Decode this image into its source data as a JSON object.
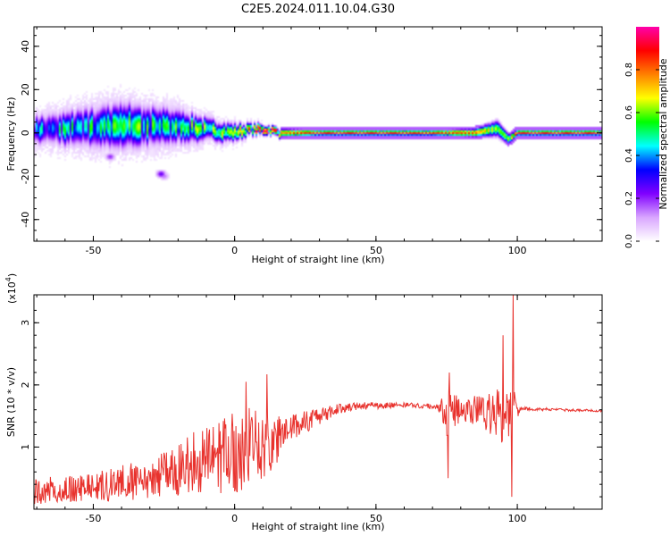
{
  "title": "C2E5.2024.011.10.04.G30",
  "chart_data": [
    {
      "type": "heatmap",
      "xlabel": "Height of straight line (km)",
      "ylabel": "Frequency (Hz)",
      "xlim": [
        -71,
        130
      ],
      "ylim": [
        -50,
        49
      ],
      "xticks": [
        -50,
        0,
        50,
        100
      ],
      "yticks": [
        -40,
        -20,
        0,
        20,
        40
      ],
      "xtick_labels": [
        "-50",
        "0",
        "50",
        "100"
      ],
      "ytick_labels": [
        "-40",
        "-20",
        "0",
        "20",
        "40"
      ],
      "colorbar": {
        "label": "Normalized spectral amplitude",
        "range": [
          0,
          1
        ],
        "ticks": [
          0.0,
          0.2,
          0.4,
          0.6,
          0.8
        ],
        "tick_labels": [
          "0.0",
          "0.2",
          "0.4",
          "0.6",
          "0.8"
        ],
        "colormap": [
          "#ffffff",
          "#d9a6ff",
          "#8000ff",
          "#0000ff",
          "#00ffff",
          "#00ff00",
          "#ffff00",
          "#ff8000",
          "#ff0000",
          "#ff00aa"
        ]
      },
      "ridge": [
        {
          "x": -70,
          "y": 1.5,
          "width": 5,
          "amp": 0.4
        },
        {
          "x": -60,
          "y": 2,
          "width": 6,
          "amp": 0.45
        },
        {
          "x": -50,
          "y": 2.5,
          "width": 7,
          "amp": 0.45
        },
        {
          "x": -40,
          "y": 3.5,
          "width": 8,
          "amp": 0.5
        },
        {
          "x": -30,
          "y": 3,
          "width": 7,
          "amp": 0.5
        },
        {
          "x": -20,
          "y": 3,
          "width": 6,
          "amp": 0.5
        },
        {
          "x": -10,
          "y": 1.5,
          "width": 4,
          "amp": 0.55
        },
        {
          "x": 0,
          "y": 0,
          "width": 3,
          "amp": 0.6
        },
        {
          "x": 5,
          "y": 1.5,
          "width": 2,
          "amp": 0.7
        },
        {
          "x": 12,
          "y": 1.5,
          "width": 1.5,
          "amp": 0.95
        },
        {
          "x": 16,
          "y": 0,
          "width": 1.5,
          "amp": 0.75
        },
        {
          "x": 30,
          "y": 0,
          "width": 1,
          "amp": 0.9
        },
        {
          "x": 50,
          "y": 0,
          "width": 1,
          "amp": 0.9
        },
        {
          "x": 70,
          "y": 0,
          "width": 1,
          "amp": 0.85
        },
        {
          "x": 85,
          "y": 0,
          "width": 1.5,
          "amp": 0.8
        },
        {
          "x": 93,
          "y": 2,
          "width": 3,
          "amp": 0.6
        },
        {
          "x": 97,
          "y": -3,
          "width": 2,
          "amp": 0.6
        },
        {
          "x": 100,
          "y": 0,
          "width": 1,
          "amp": 0.9
        },
        {
          "x": 130,
          "y": 0,
          "width": 1,
          "amp": 0.9
        }
      ],
      "spots": [
        {
          "x": -44,
          "y": -11,
          "amp": 0.2
        },
        {
          "x": -25,
          "y": -20,
          "amp": 0.15
        },
        {
          "x": -26,
          "y": -19,
          "amp": 0.25
        }
      ]
    },
    {
      "type": "line",
      "xlabel": "Height of straight line (km)",
      "ylabel": "SNR (10 * v/v)",
      "yscale_label": "(x10",
      "yscale_exponent": "4",
      "xlim": [
        -71,
        130
      ],
      "ylim": [
        0,
        3.45
      ],
      "xticks": [
        -50,
        0,
        50,
        100
      ],
      "yticks": [
        1,
        2,
        3
      ],
      "xtick_labels": [
        "-50",
        "0",
        "50",
        "100"
      ],
      "ytick_labels": [
        "1",
        "2",
        "3"
      ],
      "line_color": "#e8322d",
      "envelope": [
        {
          "x": -71,
          "mean": 0.3,
          "amp": 0.25
        },
        {
          "x": -50,
          "mean": 0.35,
          "amp": 0.25
        },
        {
          "x": -30,
          "mean": 0.5,
          "amp": 0.4
        },
        {
          "x": -15,
          "mean": 0.75,
          "amp": 0.55
        },
        {
          "x": 0,
          "mean": 0.9,
          "amp": 0.75
        },
        {
          "x": 5,
          "mean": 1.0,
          "amp": 0.7
        },
        {
          "x": 12,
          "mean": 1.05,
          "amp": 0.55
        },
        {
          "x": 20,
          "mean": 1.3,
          "amp": 0.25
        },
        {
          "x": 30,
          "mean": 1.5,
          "amp": 0.15
        },
        {
          "x": 40,
          "mean": 1.65,
          "amp": 0.08
        },
        {
          "x": 60,
          "mean": 1.68,
          "amp": 0.04
        },
        {
          "x": 72,
          "mean": 1.65,
          "amp": 0.05
        },
        {
          "x": 75,
          "mean": 1.55,
          "amp": 0.45
        },
        {
          "x": 80,
          "mean": 1.6,
          "amp": 0.25
        },
        {
          "x": 88,
          "mean": 1.55,
          "amp": 0.3
        },
        {
          "x": 94,
          "mean": 1.5,
          "amp": 0.5
        },
        {
          "x": 98,
          "mean": 1.6,
          "amp": 0.5
        },
        {
          "x": 101,
          "mean": 1.62,
          "amp": 0.03
        },
        {
          "x": 130,
          "mean": 1.58,
          "amp": 0.02
        }
      ],
      "peaks": [
        {
          "x": 11.5,
          "y": 2.17
        },
        {
          "x": 4,
          "y": 2.05
        },
        {
          "x": 75.5,
          "y": 0.5
        },
        {
          "x": 98.5,
          "y": 3.45
        },
        {
          "x": 98,
          "y": 0.2
        },
        {
          "x": 95,
          "y": 2.8
        },
        {
          "x": 76,
          "y": 2.2
        }
      ]
    }
  ]
}
